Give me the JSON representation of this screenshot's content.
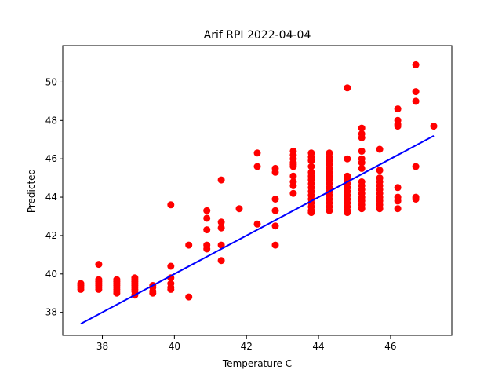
{
  "chart_data": {
    "type": "scatter",
    "title": "Arif RPI 2022-04-04",
    "xlabel": "Temperature C",
    "ylabel": "Predicted",
    "xlim": [
      36.9,
      47.7
    ],
    "ylim": [
      36.8,
      51.9
    ],
    "xticks": [
      38,
      40,
      42,
      44,
      46
    ],
    "yticks": [
      38,
      40,
      42,
      44,
      46,
      48,
      50
    ],
    "grid": false,
    "colors": {
      "points": "#ff0000",
      "fit_line": "#0000ff",
      "axes": "#000000"
    },
    "series": [
      {
        "type": "scatter",
        "points": [
          [
            37.4,
            39.2
          ],
          [
            37.4,
            39.3
          ],
          [
            37.4,
            39.4
          ],
          [
            37.4,
            39.5
          ],
          [
            37.9,
            40.5
          ],
          [
            37.9,
            39.7
          ],
          [
            37.9,
            39.6
          ],
          [
            37.9,
            39.5
          ],
          [
            37.9,
            39.4
          ],
          [
            37.9,
            39.3
          ],
          [
            37.9,
            39.2
          ],
          [
            38.4,
            39.7
          ],
          [
            38.4,
            39.6
          ],
          [
            38.4,
            39.5
          ],
          [
            38.4,
            39.4
          ],
          [
            38.4,
            39.3
          ],
          [
            38.4,
            39.2
          ],
          [
            38.4,
            39.1
          ],
          [
            38.4,
            39.0
          ],
          [
            38.9,
            39.8
          ],
          [
            38.9,
            39.7
          ],
          [
            38.9,
            39.6
          ],
          [
            38.9,
            39.5
          ],
          [
            38.9,
            39.4
          ],
          [
            38.9,
            39.3
          ],
          [
            38.9,
            39.2
          ],
          [
            38.9,
            39.1
          ],
          [
            38.9,
            38.9
          ],
          [
            39.4,
            39.4
          ],
          [
            39.4,
            39.3
          ],
          [
            39.4,
            39.1
          ],
          [
            39.4,
            39.0
          ],
          [
            39.9,
            43.6
          ],
          [
            39.9,
            40.4
          ],
          [
            39.9,
            39.8
          ],
          [
            39.9,
            39.5
          ],
          [
            39.9,
            39.3
          ],
          [
            39.9,
            39.2
          ],
          [
            40.4,
            41.5
          ],
          [
            40.4,
            38.8
          ],
          [
            40.9,
            43.3
          ],
          [
            40.9,
            42.9
          ],
          [
            40.9,
            42.3
          ],
          [
            40.9,
            41.5
          ],
          [
            40.9,
            41.3
          ],
          [
            41.3,
            44.9
          ],
          [
            41.3,
            42.7
          ],
          [
            41.3,
            42.4
          ],
          [
            41.3,
            41.5
          ],
          [
            41.3,
            40.7
          ],
          [
            41.8,
            43.4
          ],
          [
            42.3,
            46.3
          ],
          [
            42.3,
            45.6
          ],
          [
            42.3,
            42.6
          ],
          [
            42.8,
            45.5
          ],
          [
            42.8,
            45.3
          ],
          [
            42.8,
            43.9
          ],
          [
            42.8,
            43.3
          ],
          [
            42.8,
            42.5
          ],
          [
            42.8,
            41.5
          ],
          [
            43.3,
            46.4
          ],
          [
            43.3,
            46.2
          ],
          [
            43.3,
            46.0
          ],
          [
            43.3,
            45.8
          ],
          [
            43.3,
            45.7
          ],
          [
            43.3,
            45.6
          ],
          [
            43.3,
            45.1
          ],
          [
            43.3,
            44.8
          ],
          [
            43.3,
            44.6
          ],
          [
            43.3,
            44.2
          ],
          [
            43.8,
            46.3
          ],
          [
            43.8,
            46.1
          ],
          [
            43.8,
            45.9
          ],
          [
            43.8,
            45.6
          ],
          [
            43.8,
            45.3
          ],
          [
            43.8,
            45.1
          ],
          [
            43.8,
            44.9
          ],
          [
            43.8,
            44.7
          ],
          [
            43.8,
            44.5
          ],
          [
            43.8,
            44.3
          ],
          [
            43.8,
            44.1
          ],
          [
            43.8,
            43.9
          ],
          [
            43.8,
            43.7
          ],
          [
            43.8,
            43.5
          ],
          [
            43.8,
            43.3
          ],
          [
            43.8,
            43.2
          ],
          [
            44.3,
            46.3
          ],
          [
            44.3,
            46.1
          ],
          [
            44.3,
            45.9
          ],
          [
            44.3,
            45.7
          ],
          [
            44.3,
            45.5
          ],
          [
            44.3,
            45.3
          ],
          [
            44.3,
            45.1
          ],
          [
            44.3,
            44.9
          ],
          [
            44.3,
            44.7
          ],
          [
            44.3,
            44.5
          ],
          [
            44.3,
            44.3
          ],
          [
            44.3,
            44.1
          ],
          [
            44.3,
            43.9
          ],
          [
            44.3,
            43.7
          ],
          [
            44.3,
            43.5
          ],
          [
            44.3,
            43.3
          ],
          [
            44.8,
            49.7
          ],
          [
            44.8,
            46.0
          ],
          [
            44.8,
            45.1
          ],
          [
            44.8,
            44.9
          ],
          [
            44.8,
            44.7
          ],
          [
            44.8,
            44.5
          ],
          [
            44.8,
            44.3
          ],
          [
            44.8,
            44.1
          ],
          [
            44.8,
            43.9
          ],
          [
            44.8,
            43.7
          ],
          [
            44.8,
            43.5
          ],
          [
            44.8,
            43.3
          ],
          [
            44.8,
            43.2
          ],
          [
            45.2,
            47.6
          ],
          [
            45.2,
            47.3
          ],
          [
            45.2,
            47.1
          ],
          [
            45.2,
            46.4
          ],
          [
            45.2,
            46.0
          ],
          [
            45.2,
            45.8
          ],
          [
            45.2,
            45.5
          ],
          [
            45.2,
            44.8
          ],
          [
            45.2,
            44.6
          ],
          [
            45.2,
            44.4
          ],
          [
            45.2,
            44.2
          ],
          [
            45.2,
            44.0
          ],
          [
            45.2,
            43.8
          ],
          [
            45.2,
            43.6
          ],
          [
            45.2,
            43.4
          ],
          [
            45.7,
            46.5
          ],
          [
            45.7,
            45.4
          ],
          [
            45.7,
            45.0
          ],
          [
            45.7,
            44.8
          ],
          [
            45.7,
            44.6
          ],
          [
            45.7,
            44.4
          ],
          [
            45.7,
            44.2
          ],
          [
            45.7,
            44.0
          ],
          [
            45.7,
            43.8
          ],
          [
            45.7,
            43.6
          ],
          [
            45.7,
            43.4
          ],
          [
            46.2,
            48.6
          ],
          [
            46.2,
            48.0
          ],
          [
            46.2,
            47.8
          ],
          [
            46.2,
            47.7
          ],
          [
            46.2,
            44.5
          ],
          [
            46.2,
            44.0
          ],
          [
            46.2,
            43.8
          ],
          [
            46.2,
            43.4
          ],
          [
            46.7,
            50.9
          ],
          [
            46.7,
            49.5
          ],
          [
            46.7,
            49.0
          ],
          [
            46.7,
            45.6
          ],
          [
            46.7,
            44.0
          ],
          [
            46.7,
            43.9
          ],
          [
            47.2,
            47.7
          ]
        ]
      },
      {
        "type": "line",
        "points": [
          [
            37.4,
            37.4
          ],
          [
            47.2,
            47.2
          ]
        ]
      }
    ]
  }
}
